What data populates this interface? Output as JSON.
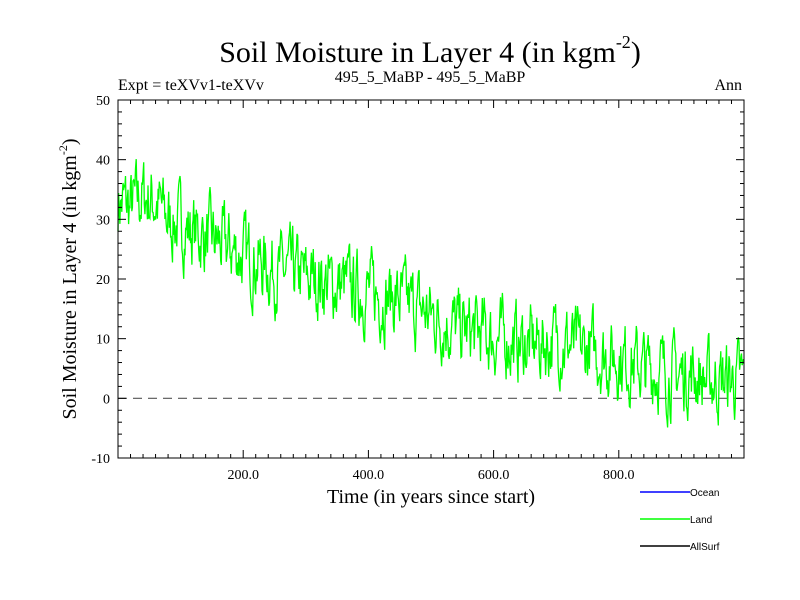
{
  "chart_data": {
    "type": "line",
    "title": "Soil Moisture in Layer 4 (in kgm",
    "title_sup": "-2",
    "title_close": ")",
    "subtitle_left": "Expt = teXVv1-teXVv",
    "subtitle_center": "495_5_MaBP - 495_5_MaBP",
    "subtitle_right": "Ann",
    "xlabel": "Time (in years since start)",
    "ylabel": "Soil Moisture in Layer 4 (in kgm",
    "ylabel_sup": "-2",
    "ylabel_close": ")",
    "xlim": [
      0,
      1000
    ],
    "ylim": [
      -10,
      50
    ],
    "x_ticks": [
      200,
      400,
      600,
      800
    ],
    "x_tick_labels": [
      "200.0",
      "400.0",
      "600.0",
      "800.0"
    ],
    "y_ticks": [
      -10,
      0,
      10,
      20,
      30,
      40,
      50
    ],
    "y_tick_labels": [
      "-10",
      "0",
      "10",
      "20",
      "30",
      "40",
      "50"
    ],
    "reference_line_y": 0,
    "legend": [
      {
        "name": "Ocean",
        "color": "#0000ff"
      },
      {
        "name": "Land",
        "color": "#00ff00"
      },
      {
        "name": "AllSurf",
        "color": "#000000"
      }
    ],
    "series": [
      {
        "name": "Land",
        "color": "#00ff00",
        "x_step": 20,
        "x_start": 0,
        "trend_values": [
          33,
          32,
          34,
          33,
          30,
          29,
          28,
          27,
          26,
          25,
          24,
          23,
          22,
          21,
          21,
          20,
          20,
          19,
          19,
          18,
          18,
          17,
          17,
          16,
          15,
          14,
          13,
          12,
          11,
          11,
          10,
          10,
          9,
          9,
          9,
          10,
          9,
          8,
          8,
          7,
          7,
          6,
          5,
          5,
          4,
          4,
          4,
          3,
          3,
          3,
          3
        ],
        "noise_amplitude": 5,
        "samples_per_year": 1
      }
    ]
  }
}
